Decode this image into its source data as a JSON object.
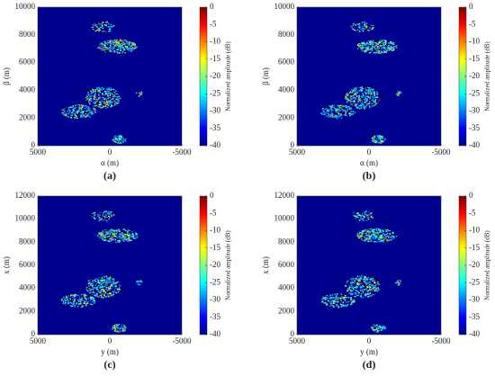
{
  "chart_data": [
    {
      "type": "heatmap",
      "xlabel": "α (m)",
      "ylabel": "β (m)",
      "caption": "(a)",
      "xlim": [
        5000,
        -5000
      ],
      "xticks": [
        5000,
        0,
        -5000
      ],
      "ylim": [
        0,
        10000
      ],
      "yticks": [
        0,
        2000,
        4000,
        6000,
        8000,
        10000
      ],
      "colormap": "jet",
      "colorbar": {
        "label": "Normalized amplitude (dB)",
        "lim": [
          -40,
          0
        ],
        "ticks": [
          0,
          -5,
          -10,
          -15,
          -20,
          -25,
          -30,
          -35,
          -40
        ]
      }
    },
    {
      "type": "heatmap",
      "xlabel": "α (m)",
      "ylabel": "β (m)",
      "caption": "(b)",
      "xlim": [
        5000,
        -5000
      ],
      "xticks": [
        5000,
        0,
        -5000
      ],
      "ylim": [
        0,
        10000
      ],
      "yticks": [
        0,
        2000,
        4000,
        6000,
        8000,
        10000
      ],
      "colormap": "jet",
      "colorbar": {
        "label": "Normalized amplitude (dB)",
        "lim": [
          -40,
          0
        ],
        "ticks": [
          0,
          -5,
          -10,
          -15,
          -20,
          -25,
          -30,
          -35,
          -40
        ]
      }
    },
    {
      "type": "heatmap",
      "xlabel": "y (m)",
      "ylabel": "x (m)",
      "caption": "(c)",
      "xlim": [
        5000,
        -5000
      ],
      "xticks": [
        5000,
        0,
        -5000
      ],
      "ylim": [
        0,
        12000
      ],
      "yticks": [
        0,
        2000,
        4000,
        6000,
        8000,
        10000,
        12000
      ],
      "colormap": "jet",
      "colorbar": {
        "label": "Normalized amplitude (dB)",
        "lim": [
          -40,
          0
        ],
        "ticks": [
          0,
          -5,
          -10,
          -15,
          -20,
          -25,
          -30,
          -35,
          -40
        ]
      }
    },
    {
      "type": "heatmap",
      "xlabel": "y (m)",
      "ylabel": "x (m)",
      "caption": "(d)",
      "xlim": [
        5000,
        -5000
      ],
      "xticks": [
        5000,
        0,
        -5000
      ],
      "ylim": [
        0,
        12000
      ],
      "yticks": [
        0,
        2000,
        4000,
        6000,
        8000,
        10000,
        12000
      ],
      "colormap": "jet",
      "colorbar": {
        "label": "Normalized amplitude (dB)",
        "lim": [
          -40,
          0
        ],
        "ticks": [
          0,
          -5,
          -10,
          -15,
          -20,
          -25,
          -30,
          -35,
          -40
        ]
      }
    }
  ]
}
